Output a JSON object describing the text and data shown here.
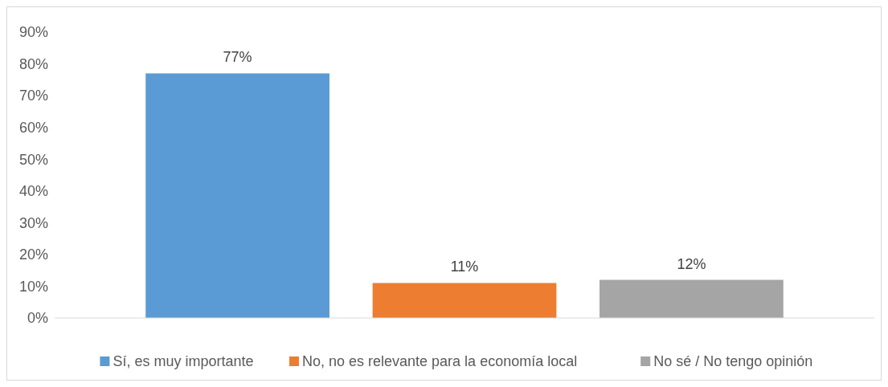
{
  "chart_data": {
    "type": "bar",
    "categories": [
      null
    ],
    "series": [
      {
        "name": "Sí, es muy importante",
        "color": "#5b9bd5",
        "values": [
          77
        ],
        "value_labels": [
          "77%"
        ]
      },
      {
        "name": "No, no es relevante para la economía local",
        "color": "#ed7d31",
        "values": [
          11
        ],
        "value_labels": [
          "11%"
        ]
      },
      {
        "name": "No sé / No tengo opinión",
        "color": "#a5a5a5",
        "values": [
          12
        ],
        "value_labels": [
          "12%"
        ]
      }
    ],
    "ylim": [
      0,
      90
    ],
    "yticks": [
      {
        "value": 0,
        "label": "0%"
      },
      {
        "value": 10,
        "label": "10%"
      },
      {
        "value": 20,
        "label": "20%"
      },
      {
        "value": 30,
        "label": "30%"
      },
      {
        "value": 40,
        "label": "40%"
      },
      {
        "value": 50,
        "label": "50%"
      },
      {
        "value": 60,
        "label": "60%"
      },
      {
        "value": 70,
        "label": "70%"
      },
      {
        "value": 80,
        "label": "80%"
      },
      {
        "value": 90,
        "label": "90%"
      }
    ],
    "grid": false,
    "legend": "bottom"
  }
}
